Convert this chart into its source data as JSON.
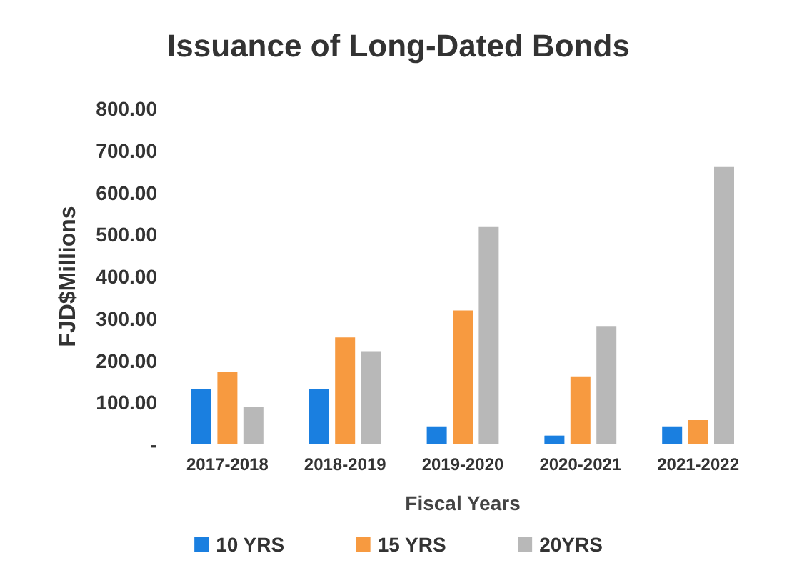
{
  "chart_data": {
    "type": "bar",
    "title": "Issuance of Long-Dated Bonds",
    "xlabel": "Fiscal Years",
    "ylabel": "FJD$Millions",
    "categories": [
      "2017-2018",
      "2018-2019",
      "2019-2020",
      "2020-2021",
      "2021-2022"
    ],
    "series": [
      {
        "name": "10 YRS",
        "color": "#1a7fe0",
        "values": [
          131,
          132,
          43,
          21,
          43
        ]
      },
      {
        "name": "15 YRS",
        "color": "#f79a40",
        "values": [
          173,
          255,
          319,
          162,
          58
        ]
      },
      {
        "name": "20YRS",
        "color": "#b8b8b8",
        "values": [
          90,
          222,
          518,
          282,
          661
        ]
      }
    ],
    "ylim": [
      0,
      800
    ],
    "yticks": [
      {
        "value": 0,
        "label": "-"
      },
      {
        "value": 100,
        "label": "100.00"
      },
      {
        "value": 200,
        "label": "200.00"
      },
      {
        "value": 300,
        "label": "300.00"
      },
      {
        "value": 400,
        "label": "400.00"
      },
      {
        "value": 500,
        "label": "500.00"
      },
      {
        "value": 600,
        "label": "600.00"
      },
      {
        "value": 700,
        "label": "700.00"
      },
      {
        "value": 800,
        "label": "800.00"
      }
    ],
    "grid": false,
    "legend": "bottom"
  }
}
